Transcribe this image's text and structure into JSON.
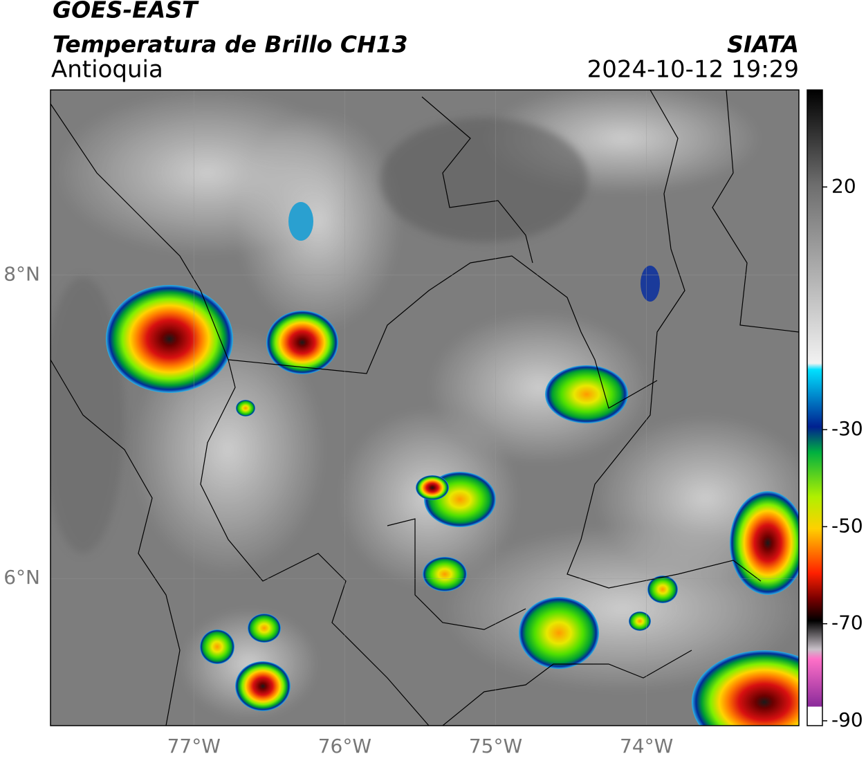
{
  "header": {
    "satellite": "GOES-EAST",
    "product": "Temperatura de Brillo CH13",
    "region": "Antioquia",
    "source": "SIATA",
    "datetime": "2024-10-12 19:29"
  },
  "map": {
    "lonlim": [
      -77.95,
      -72.99
    ],
    "latlim": [
      5.03,
      9.22
    ],
    "lon_ticks": [
      {
        "value": -77,
        "label": "77°W"
      },
      {
        "value": -76,
        "label": "76°W"
      },
      {
        "value": -75,
        "label": "75°W"
      },
      {
        "value": -74,
        "label": "74°W"
      }
    ],
    "lat_ticks": [
      {
        "value": 8,
        "label": "8°N"
      },
      {
        "value": 6,
        "label": "6°N"
      }
    ]
  },
  "colorbar": {
    "lim": [
      -91,
      40
    ],
    "ticks": [
      20,
      -30,
      -50,
      -70,
      -90
    ]
  }
}
